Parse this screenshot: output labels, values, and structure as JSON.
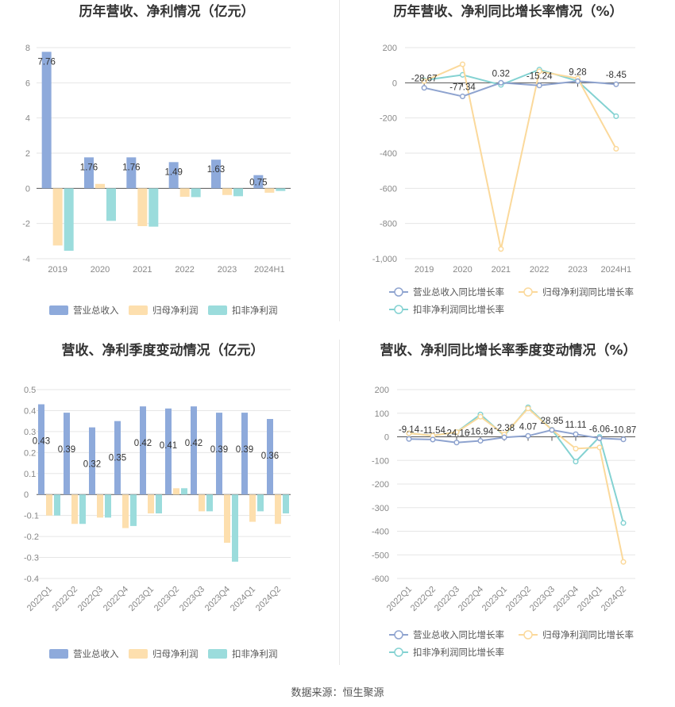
{
  "source_text": "数据来源：恒生聚源",
  "colors": {
    "revenue": "#8eaadb",
    "netprofit": "#fddfae",
    "deducted": "#9bdcdc",
    "revenue_line": "#8ea3cf",
    "netprofit_line": "#fbd99b",
    "deducted_line": "#84d2d2"
  },
  "chart_data": [
    {
      "type": "bar",
      "title": "历年营收、净利情况（亿元）",
      "categories": [
        "2019",
        "2020",
        "2021",
        "2022",
        "2023",
        "2024H1"
      ],
      "ylim": [
        -4,
        8
      ],
      "yticks": [
        -4,
        -2,
        0,
        2,
        4,
        6,
        8
      ],
      "ytick_labels": [
        "-4",
        "-2",
        "0",
        "2",
        "4",
        "6",
        "8"
      ],
      "series": [
        {
          "name": "营业总收入",
          "values": [
            7.76,
            1.76,
            1.76,
            1.49,
            1.63,
            0.75
          ],
          "labels": [
            "7.76",
            "1.76",
            "1.76",
            "1.49",
            "1.63",
            "0.75"
          ]
        },
        {
          "name": "归母净利润",
          "values": [
            -3.25,
            0.25,
            -2.15,
            -0.48,
            -0.38,
            -0.25
          ]
        },
        {
          "name": "扣非净利润",
          "values": [
            -3.55,
            -1.85,
            -2.18,
            -0.5,
            -0.45,
            -0.15
          ]
        }
      ],
      "legend": "bottom"
    },
    {
      "type": "line",
      "title": "历年营收、净利同比增长率情况（%）",
      "categories": [
        "2019",
        "2020",
        "2021",
        "2022",
        "2023",
        "2024H1"
      ],
      "ylim": [
        -1000,
        200
      ],
      "yticks": [
        -1000,
        -800,
        -600,
        -400,
        -200,
        0,
        200
      ],
      "ytick_labels": [
        "-1,000",
        "-800",
        "-600",
        "-400",
        "-200",
        "0",
        "200"
      ],
      "series": [
        {
          "name": "营业总收入同比增长率",
          "values": [
            -28.67,
            -77.34,
            0.32,
            -15.24,
            9.28,
            -8.45
          ],
          "labels": [
            "-28.67",
            "-77.34",
            "0.32",
            "-15.24",
            "9.28",
            "-8.45"
          ]
        },
        {
          "name": "归母净利润同比增长率",
          "values": [
            10,
            105,
            -945,
            65,
            25,
            -375
          ]
        },
        {
          "name": "扣非净利润同比增长率",
          "values": [
            15,
            45,
            -12,
            75,
            10,
            -190
          ]
        }
      ],
      "legend": "bottom"
    },
    {
      "type": "bar",
      "title": "营收、净利季度变动情况（亿元）",
      "categories": [
        "2022Q1",
        "2022Q2",
        "2022Q3",
        "2022Q4",
        "2023Q1",
        "2023Q2",
        "2023Q3",
        "2023Q4",
        "2024Q1",
        "2024Q2"
      ],
      "ylim": [
        -0.4,
        0.5
      ],
      "yticks": [
        -0.4,
        -0.3,
        -0.2,
        -0.1,
        0,
        0.1,
        0.2,
        0.3,
        0.4,
        0.5
      ],
      "ytick_labels": [
        "-0.4",
        "-0.3",
        "-0.2",
        "-0.1",
        "0",
        "0.1",
        "0.2",
        "0.3",
        "0.4",
        "0.5"
      ],
      "series": [
        {
          "name": "营业总收入",
          "values": [
            0.43,
            0.39,
            0.32,
            0.35,
            0.42,
            0.41,
            0.42,
            0.39,
            0.39,
            0.36
          ],
          "labels": [
            "0.43",
            "0.39",
            "0.32",
            "0.35",
            "0.42",
            "0.41",
            "0.42",
            "0.39",
            "0.39",
            "0.36"
          ]
        },
        {
          "name": "归母净利润",
          "values": [
            -0.1,
            -0.14,
            -0.11,
            -0.16,
            -0.09,
            0.03,
            -0.08,
            -0.23,
            -0.13,
            -0.14
          ]
        },
        {
          "name": "扣非净利润",
          "values": [
            -0.1,
            -0.14,
            -0.11,
            -0.15,
            -0.09,
            0.03,
            -0.08,
            -0.32,
            -0.08,
            -0.09
          ]
        }
      ],
      "legend": "bottom"
    },
    {
      "type": "line",
      "title": "营收、净利同比增长率季度变动情况（%）",
      "categories": [
        "2022Q1",
        "2022Q2",
        "2022Q3",
        "2022Q4",
        "2023Q1",
        "2023Q2",
        "2023Q3",
        "2023Q4",
        "2024Q1",
        "2024Q2"
      ],
      "ylim": [
        -600,
        200
      ],
      "yticks": [
        -600,
        -500,
        -400,
        -300,
        -200,
        -100,
        0,
        100,
        200
      ],
      "ytick_labels": [
        "-600",
        "-500",
        "-400",
        "-300",
        "-200",
        "-100",
        "0",
        "100",
        "200"
      ],
      "series": [
        {
          "name": "营业总收入同比增长率",
          "values": [
            -9.14,
            -11.54,
            -24.16,
            -16.94,
            -2.38,
            4.07,
            28.95,
            11.11,
            -6.06,
            -10.87
          ],
          "labels": [
            "-9.14",
            "-11.54",
            "-24.16",
            "-16.94",
            "-2.38",
            "4.07",
            "28.95",
            "11.11",
            "-6.06",
            "-10.87"
          ]
        },
        {
          "name": "归母净利润同比增长率",
          "values": [
            15,
            5,
            20,
            85,
            10,
            120,
            30,
            -50,
            -45,
            -530
          ]
        },
        {
          "name": "扣非净利润同比增长率",
          "values": [
            15,
            5,
            20,
            95,
            5,
            125,
            30,
            -105,
            0,
            -365
          ]
        }
      ],
      "legend": "bottom"
    }
  ]
}
